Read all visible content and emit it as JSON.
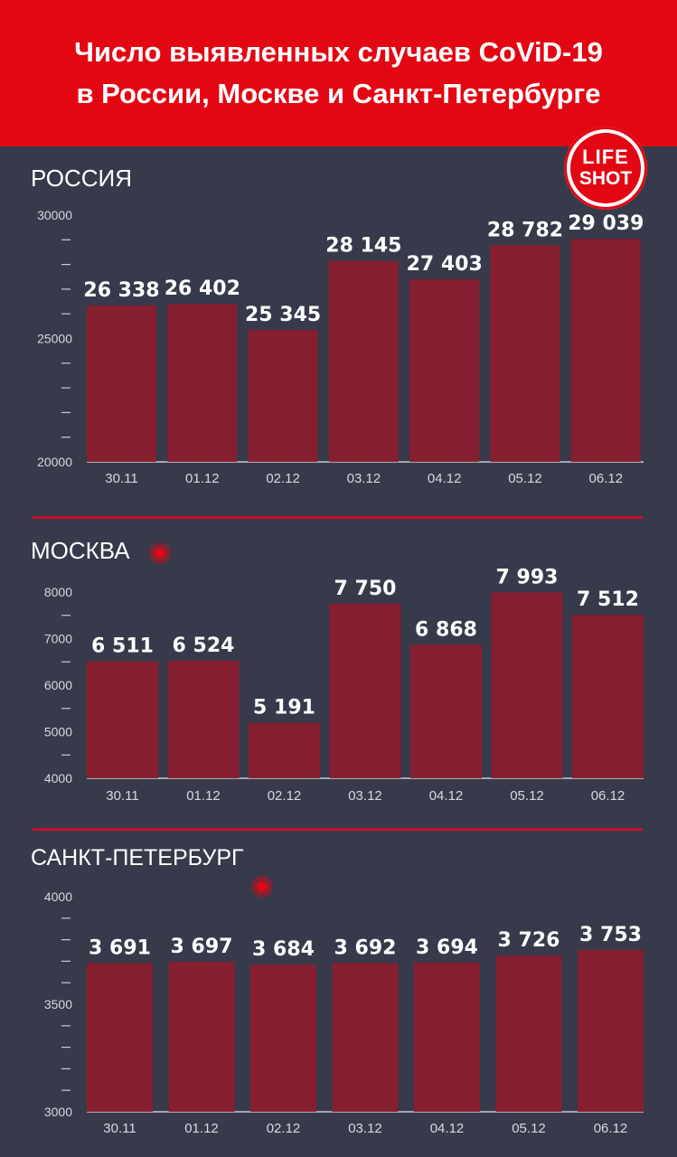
{
  "header": {
    "title_line1": "Число выявленных случаев CoViD-19",
    "title_line2": "в России, Москве и Санкт-Петербурге"
  },
  "logo": {
    "line1": "LIFE",
    "line2": "SHOT"
  },
  "colors": {
    "header": "#e30613",
    "background": "#363a4a",
    "bar": "#8c1d2e",
    "divider": "#c8102e"
  },
  "chart_data": [
    {
      "type": "bar",
      "title": "РОССИЯ",
      "categories": [
        "30.11",
        "01.12",
        "02.12",
        "03.12",
        "04.12",
        "05.12",
        "06.12"
      ],
      "values": [
        26338,
        26402,
        25345,
        28145,
        27403,
        28782,
        29039
      ],
      "value_labels": [
        "26 338",
        "26 402",
        "25 345",
        "28 145",
        "27 403",
        "28 782",
        "29 039"
      ],
      "ylim": [
        20000,
        30000
      ],
      "yticks": [
        20000,
        25000,
        30000
      ],
      "ytick_labels": [
        "20000",
        "25000",
        "30000"
      ],
      "minor_ticks": 4
    },
    {
      "type": "bar",
      "title": "МОСКВА",
      "categories": [
        "30.11",
        "01.12",
        "02.12",
        "03.12",
        "04.12",
        "05.12",
        "06.12"
      ],
      "values": [
        6511,
        6524,
        5191,
        7750,
        6868,
        7993,
        7512
      ],
      "value_labels": [
        "6 511",
        "6 524",
        "5 191",
        "7 750",
        "6 868",
        "7 993",
        "7 512"
      ],
      "ylim": [
        4000,
        8000
      ],
      "yticks": [
        4000,
        5000,
        6000,
        7000,
        8000
      ],
      "ytick_labels": [
        "4000",
        "5000",
        "6000",
        "7000",
        "8000"
      ],
      "minor_ticks": 1
    },
    {
      "type": "bar",
      "title": "САНКТ-ПЕТЕРБУРГ",
      "categories": [
        "30.11",
        "01.12",
        "02.12",
        "03.12",
        "04.12",
        "05.12",
        "06.12"
      ],
      "values": [
        3691,
        3697,
        3684,
        3692,
        3694,
        3726,
        3753
      ],
      "value_labels": [
        "3 691",
        "3 697",
        "3 684",
        "3 692",
        "3 694",
        "3 726",
        "3 753"
      ],
      "ylim": [
        3000,
        4000
      ],
      "yticks": [
        3000,
        3500,
        4000
      ],
      "ytick_labels": [
        "3000",
        "3500",
        "4000"
      ],
      "minor_ticks": 4
    }
  ]
}
